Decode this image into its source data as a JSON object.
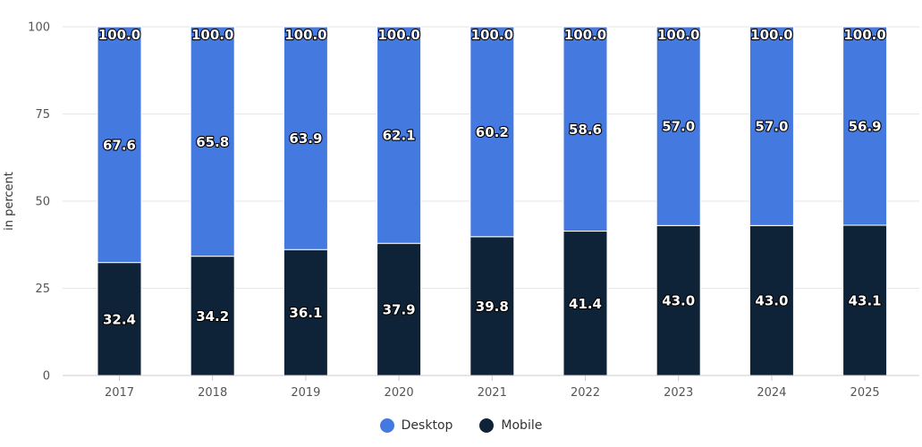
{
  "chart_data": {
    "type": "bar",
    "stacked": true,
    "title": "",
    "xlabel": "",
    "ylabel": "in percent",
    "ylim": [
      0,
      100
    ],
    "yticks": [
      0,
      25,
      50,
      75,
      100
    ],
    "grid": true,
    "legend_position": "bottom",
    "categories": [
      "2017",
      "2018",
      "2019",
      "2020",
      "2021",
      "2022",
      "2023",
      "2024",
      "2025"
    ],
    "series": [
      {
        "name": "Mobile",
        "color": "#0f2338",
        "values": [
          32.4,
          34.2,
          36.1,
          37.9,
          39.8,
          41.4,
          43.0,
          43.0,
          43.1
        ]
      },
      {
        "name": "Desktop",
        "color": "#4479e0",
        "values": [
          67.6,
          65.8,
          63.9,
          62.1,
          60.2,
          58.6,
          57.0,
          57.0,
          56.9
        ]
      }
    ],
    "total_labels": [
      "100.0",
      "100.0",
      "100.0",
      "100.0",
      "100.0",
      "100.0",
      "100.0",
      "100.0",
      "100.0"
    ]
  },
  "legend": [
    {
      "label": "Desktop",
      "color": "#4479e0"
    },
    {
      "label": "Mobile",
      "color": "#0f2338"
    }
  ]
}
